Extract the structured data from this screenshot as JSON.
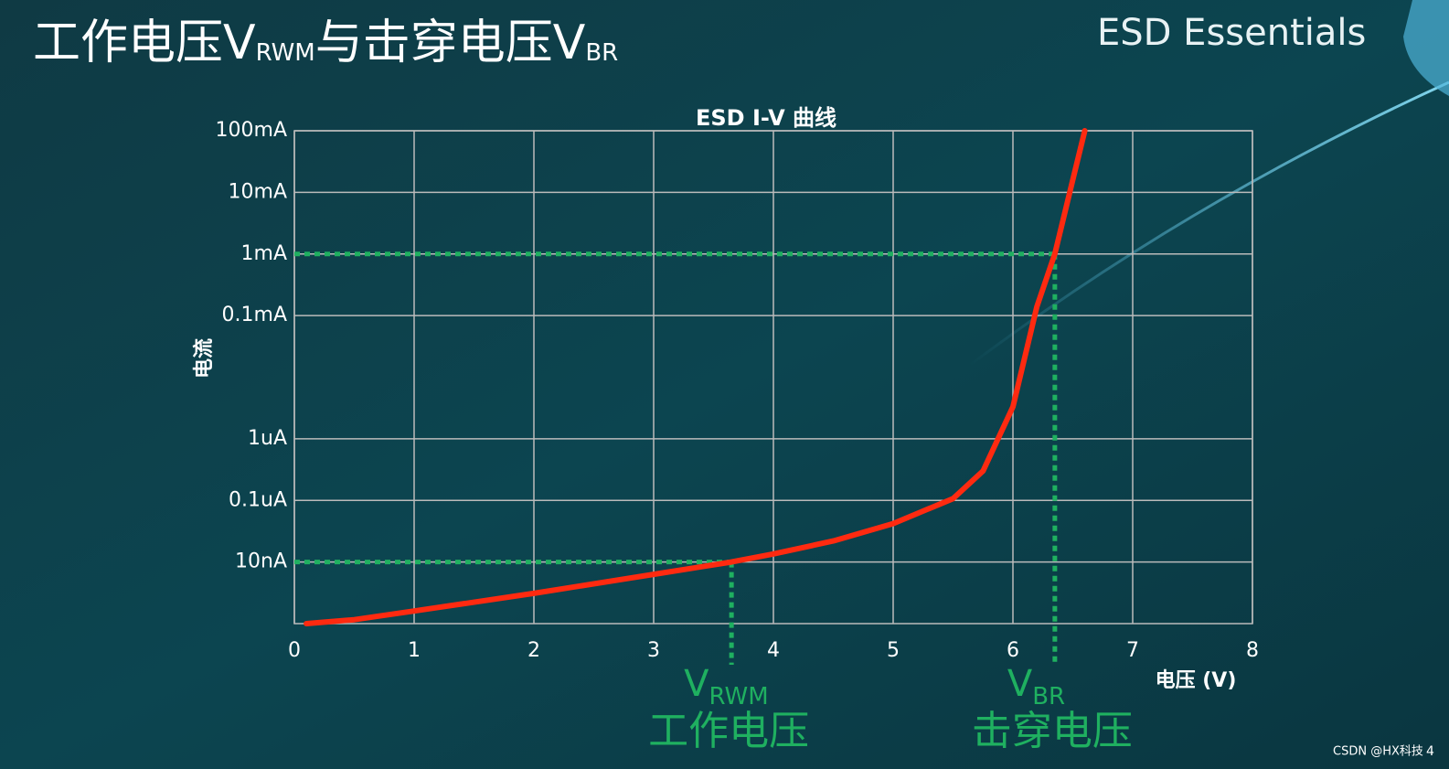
{
  "slide": {
    "title_parts": [
      "工作电压V",
      "RWM",
      "与击穿电压V",
      "BR"
    ],
    "brand": "ESD Essentials",
    "watermark": "CSDN @HX科技",
    "page_number": "4"
  },
  "chart_data": {
    "type": "line",
    "title": "ESD I-V 曲线",
    "x_label": "电压 (V)",
    "y_label": "电流",
    "xlim": [
      0,
      8
    ],
    "xticks": [
      0,
      1,
      2,
      3,
      4,
      5,
      6,
      7,
      8
    ],
    "ylim": [
      1e-09,
      0.1
    ],
    "y_scale": "log",
    "yticks": [
      {
        "value": 0.1,
        "label": "100mA"
      },
      {
        "value": 0.01,
        "label": "10mA"
      },
      {
        "value": 0.001,
        "label": "1mA"
      },
      {
        "value": 0.0001,
        "label": "0.1mA"
      },
      {
        "value": 1e-06,
        "label": "1uA"
      },
      {
        "value": 1e-07,
        "label": "0.1uA"
      },
      {
        "value": 1e-08,
        "label": "10nA"
      }
    ],
    "grid": true,
    "series": [
      {
        "color": "#ff2a10",
        "x": [
          0.1,
          0.5,
          1,
          2,
          3,
          3.65,
          4,
          4.5,
          5,
          5.5,
          5.75,
          6,
          6.2,
          6.35,
          6.5,
          6.6
        ],
        "values": [
          1e-09,
          1.16e-09,
          1.6e-09,
          3.1e-09,
          6.3e-09,
          1e-08,
          1.35e-08,
          2.2e-08,
          4.2e-08,
          1.07e-07,
          3e-07,
          3.3e-06,
          0.00014,
          0.001,
          0.016,
          0.1
        ]
      }
    ],
    "reference_lines": [
      {
        "x": 3.65,
        "y": 1e-08,
        "symbol": "V",
        "subscript": "RWM",
        "label": "工作电压",
        "color": "#1fb060"
      },
      {
        "x": 6.35,
        "y": 0.001,
        "symbol": "V",
        "subscript": "BR",
        "label": "击穿电压",
        "color": "#1fb060"
      }
    ]
  }
}
